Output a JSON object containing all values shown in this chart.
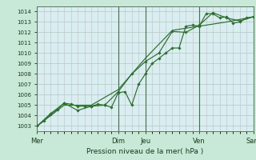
{
  "bg_color": "#c8e8d8",
  "plot_bg_color": "#d8eef0",
  "grid_major_color": "#b0c8c0",
  "grid_minor_color": "#d0b8c8",
  "line_color": "#2d6e2d",
  "marker_color": "#2d6e2d",
  "xlabel": "Pression niveau de la mer( hPa )",
  "ylim": [
    1002.5,
    1014.5
  ],
  "yticks": [
    1003,
    1004,
    1005,
    1006,
    1007,
    1008,
    1009,
    1010,
    1011,
    1012,
    1013,
    1014
  ],
  "x_day_labels": [
    "Mer",
    "Dim",
    "Jeu",
    "Ven",
    "Sam"
  ],
  "x_day_positions": [
    0,
    3,
    4,
    6,
    8
  ],
  "xlim": [
    0,
    8
  ],
  "line1": {
    "x": [
      0,
      0.25,
      0.5,
      0.75,
      1.0,
      1.25,
      1.5,
      1.75,
      2.0,
      2.25,
      2.5,
      2.75,
      3.0,
      3.25,
      3.5,
      3.75,
      4.0,
      4.25,
      4.5,
      4.75,
      5.0,
      5.25,
      5.5,
      5.75,
      6.0,
      6.25,
      6.5,
      6.75,
      7.0,
      7.25,
      7.5,
      7.75,
      8.0
    ],
    "y": [
      1003.0,
      1003.5,
      1004.1,
      1004.6,
      1005.2,
      1005.1,
      1004.9,
      1004.9,
      1004.9,
      1005.1,
      1005.0,
      1004.8,
      1006.2,
      1006.3,
      1005.0,
      1007.0,
      1008.0,
      1009.0,
      1009.5,
      1010.0,
      1010.5,
      1010.5,
      1012.6,
      1012.7,
      1012.6,
      1013.8,
      1013.8,
      1013.4,
      1013.5,
      1012.9,
      1013.0,
      1013.4,
      1013.5
    ]
  },
  "line2": {
    "x": [
      0,
      0.5,
      1.0,
      1.5,
      2.0,
      2.5,
      3.0,
      3.5,
      4.0,
      4.5,
      5.0,
      5.5,
      6.0,
      6.5,
      7.0,
      7.5,
      8.0
    ],
    "y": [
      1003.0,
      1004.2,
      1005.2,
      1004.5,
      1004.9,
      1005.0,
      1006.3,
      1008.0,
      1009.2,
      1010.0,
      1012.1,
      1012.0,
      1012.7,
      1013.9,
      1013.4,
      1013.1,
      1013.5
    ]
  },
  "line3": {
    "x": [
      0,
      1.0,
      2.0,
      3.0,
      4.0,
      5.0,
      6.0,
      7.0,
      8.0
    ],
    "y": [
      1003.0,
      1005.0,
      1005.0,
      1006.5,
      1009.5,
      1012.2,
      1012.6,
      1013.0,
      1013.5
    ]
  },
  "xlabel_fontsize": 6.5,
  "ytick_fontsize": 5.0,
  "xtick_fontsize": 6.0
}
